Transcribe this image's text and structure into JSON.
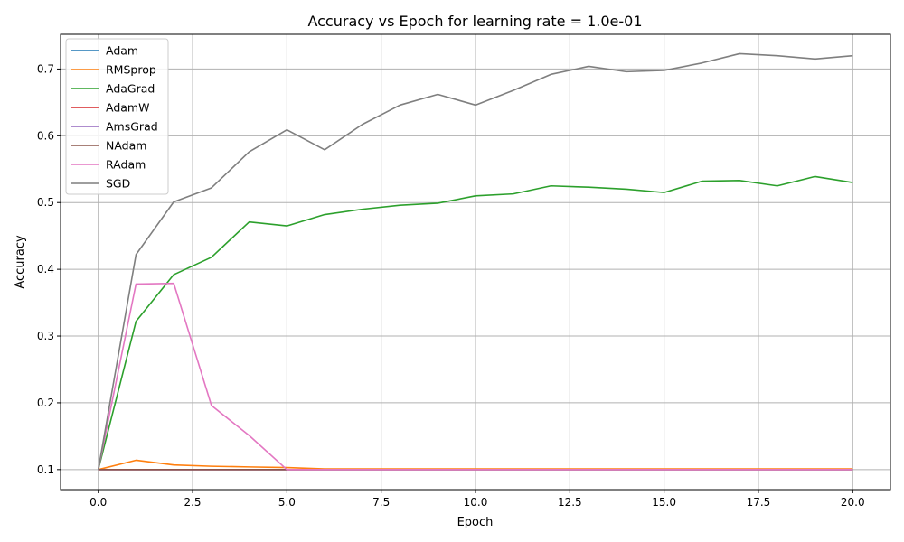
{
  "chart_data": {
    "type": "line",
    "title": "Accuracy vs Epoch for learning rate = 1.0e-01",
    "xlabel": "Epoch",
    "ylabel": "Accuracy",
    "xlim": [
      -1,
      21
    ],
    "ylim": [
      0.07,
      0.752
    ],
    "xticks": [
      0.0,
      2.5,
      5.0,
      7.5,
      10.0,
      12.5,
      15.0,
      17.5,
      20.0
    ],
    "xtick_labels": [
      "0.0",
      "2.5",
      "5.0",
      "7.5",
      "10.0",
      "12.5",
      "15.0",
      "17.5",
      "20.0"
    ],
    "yticks": [
      0.1,
      0.2,
      0.3,
      0.4,
      0.5,
      0.6,
      0.7
    ],
    "ytick_labels": [
      "0.1",
      "0.2",
      "0.3",
      "0.4",
      "0.5",
      "0.6",
      "0.7"
    ],
    "grid": true,
    "legend_position": "top-left",
    "x": [
      0,
      1,
      2,
      3,
      4,
      5,
      6,
      7,
      8,
      9,
      10,
      11,
      12,
      13,
      14,
      15,
      16,
      17,
      18,
      19,
      20
    ],
    "series": [
      {
        "name": "Adam",
        "color": "#1f77b4",
        "values": [
          0.1,
          0.1,
          0.1,
          0.1,
          0.1,
          0.1,
          0.1,
          0.1,
          0.1,
          0.1,
          0.1,
          0.1,
          0.1,
          0.1,
          0.1,
          0.1,
          0.1,
          0.1,
          0.1,
          0.1,
          0.1
        ]
      },
      {
        "name": "RMSprop",
        "color": "#ff7f0e",
        "values": [
          0.1,
          0.114,
          0.107,
          0.105,
          0.104,
          0.103,
          0.101,
          0.101,
          0.101,
          0.101,
          0.101,
          0.101,
          0.101,
          0.101,
          0.101,
          0.101,
          0.101,
          0.101,
          0.101,
          0.101,
          0.101
        ]
      },
      {
        "name": "AdaGrad",
        "color": "#2ca02c",
        "values": [
          0.1,
          0.322,
          0.392,
          0.418,
          0.471,
          0.465,
          0.482,
          0.49,
          0.496,
          0.499,
          0.51,
          0.513,
          0.525,
          0.523,
          0.52,
          0.515,
          0.532,
          0.533,
          0.525,
          0.539,
          0.53
        ]
      },
      {
        "name": "AdamW",
        "color": "#d62728",
        "values": [
          0.1,
          0.1,
          0.1,
          0.1,
          0.1,
          0.1,
          0.1,
          0.1,
          0.1,
          0.1,
          0.1,
          0.1,
          0.1,
          0.1,
          0.1,
          0.1,
          0.1,
          0.1,
          0.1,
          0.1,
          0.1
        ]
      },
      {
        "name": "AmsGrad",
        "color": "#9467bd",
        "values": [
          0.1,
          0.1,
          0.1,
          0.1,
          0.1,
          0.1,
          0.1,
          0.1,
          0.1,
          0.1,
          0.1,
          0.1,
          0.1,
          0.1,
          0.1,
          0.1,
          0.1,
          0.1,
          0.1,
          0.1,
          0.1
        ]
      },
      {
        "name": "NAdam",
        "color": "#8c564b",
        "values": [
          0.1,
          0.1,
          0.1,
          0.1,
          0.1,
          0.1,
          0.1,
          0.1,
          0.1,
          0.1,
          0.1,
          0.1,
          0.1,
          0.1,
          0.1,
          0.1,
          0.1,
          0.1,
          0.1,
          0.1,
          0.1
        ]
      },
      {
        "name": "RAdam",
        "color": "#e377c2",
        "values": [
          0.1,
          0.378,
          0.379,
          0.196,
          0.151,
          0.1,
          0.1,
          0.1,
          0.1,
          0.1,
          0.1,
          0.1,
          0.1,
          0.1,
          0.1,
          0.1,
          0.1,
          0.1,
          0.1,
          0.1,
          0.1
        ]
      },
      {
        "name": "SGD",
        "color": "#7f7f7f",
        "values": [
          0.1,
          0.422,
          0.501,
          0.522,
          0.576,
          0.609,
          0.579,
          0.617,
          0.646,
          0.662,
          0.646,
          0.668,
          0.692,
          0.704,
          0.696,
          0.698,
          0.709,
          0.723,
          0.72,
          0.715,
          0.72
        ]
      }
    ]
  }
}
